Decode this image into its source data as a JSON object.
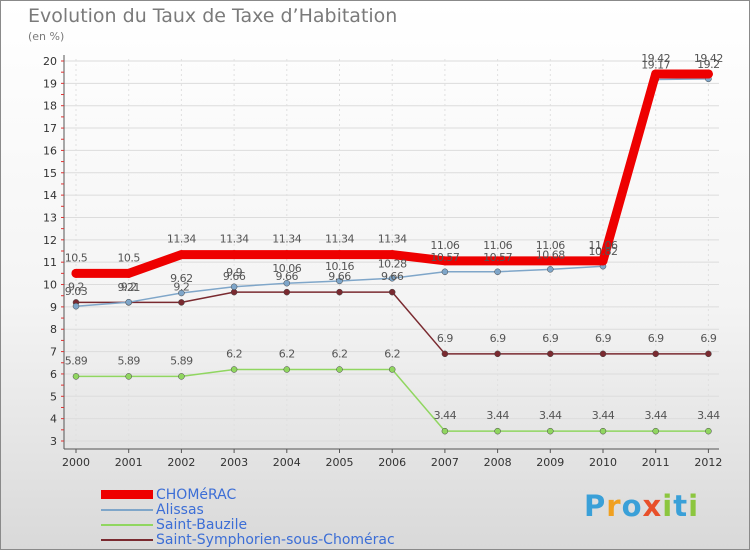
{
  "header": {
    "title": "Evolution du Taux de Taxe d’Habitation",
    "subtitle": "(en %)"
  },
  "chart_data": {
    "type": "line",
    "title": "Evolution du Taux de Taxe d’Habitation",
    "ylabel": "(en %)",
    "xlabel": "",
    "x": [
      "2000",
      "2001",
      "2002",
      "2003",
      "2004",
      "2005",
      "2006",
      "2007",
      "2008",
      "2009",
      "2010",
      "2011",
      "2012"
    ],
    "ylim": [
      3,
      20
    ],
    "yticks": [
      3,
      4,
      5,
      6,
      7,
      8,
      9,
      10,
      11,
      12,
      13,
      14,
      15,
      16,
      17,
      18,
      19,
      20
    ],
    "legend_position": "bottom-left",
    "series": [
      {
        "name": "CHOMéRAC",
        "color": "#ee0000",
        "values": [
          10.5,
          10.5,
          11.34,
          11.34,
          11.34,
          11.34,
          11.34,
          11.06,
          11.06,
          11.06,
          11.06,
          19.42,
          19.42
        ],
        "labels": [
          "10.5",
          "10.5",
          "11.34",
          "11.34",
          "11.34",
          "11.34",
          "11.34",
          "11.06",
          "11.06",
          "11.06",
          "11.06",
          "19.42",
          "19.42"
        ]
      },
      {
        "name": "Alissas",
        "color": "#7fa6c9",
        "values": [
          9.03,
          9.21,
          9.62,
          9.9,
          10.06,
          10.16,
          10.28,
          10.57,
          10.57,
          10.68,
          10.82,
          19.17,
          19.2
        ],
        "labels": [
          "9.03",
          "9.21",
          "9.62",
          "9.9",
          "10.06",
          "10.16",
          "10.28",
          "10.57",
          "10.57",
          "10.68",
          "10.82",
          "19.17",
          "19.2"
        ]
      },
      {
        "name": "Saint-Bauzile",
        "color": "#90d660",
        "values": [
          5.89,
          5.89,
          5.89,
          6.2,
          6.2,
          6.2,
          6.2,
          3.44,
          3.44,
          3.44,
          3.44,
          3.44,
          3.44
        ],
        "labels": [
          "5.89",
          "5.89",
          "5.89",
          "6.2",
          "6.2",
          "6.2",
          "6.2",
          "3.44",
          "3.44",
          "3.44",
          "3.44",
          "3.44",
          "3.44"
        ]
      },
      {
        "name": "Saint-Symphorien-sous-Chomérac",
        "color": "#7a2a30",
        "values": [
          9.2,
          9.2,
          9.2,
          9.66,
          9.66,
          9.66,
          9.66,
          6.9,
          6.9,
          6.9,
          6.9,
          6.9,
          6.9
        ],
        "labels": [
          "9.2",
          "9.2",
          "9.2",
          "9.66",
          "9.66",
          "9.66",
          "9.66",
          "6.9",
          "6.9",
          "6.9",
          "6.9",
          "6.9",
          "6.9"
        ]
      }
    ]
  },
  "logo": {
    "letters": [
      "P",
      "r",
      "o",
      "x",
      "i",
      "t",
      "i"
    ],
    "colors": [
      "#3aa0d8",
      "#f0a020",
      "#3aa0d8",
      "#e8502a",
      "#8cc63f",
      "#3aa0d8",
      "#8cc63f"
    ]
  }
}
